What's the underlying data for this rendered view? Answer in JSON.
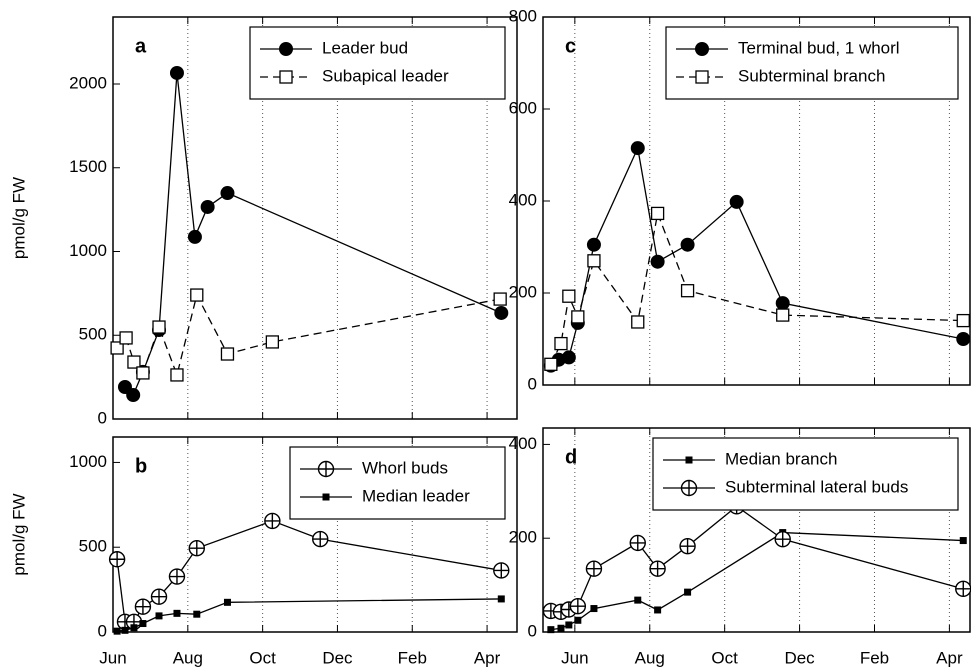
{
  "chart_data": [
    {
      "type": "line",
      "label": "a",
      "ylabel": "pmol/g FW",
      "legend": "upper right",
      "xgrid": true,
      "xlim": [
        6,
        16.8
      ],
      "ylim": [
        0,
        2400
      ],
      "yticks": [
        0,
        500,
        1000,
        1500,
        2000
      ],
      "xticks": [
        {
          "value": 6,
          "label": "Jun"
        },
        {
          "value": 8,
          "label": "Aug"
        },
        {
          "value": 10,
          "label": "Oct"
        },
        {
          "value": 12,
          "label": "Dec"
        },
        {
          "value": 14,
          "label": "Feb"
        },
        {
          "value": 16,
          "label": "Apr"
        }
      ],
      "series": [
        {
          "name": "Leader bud",
          "color": "#000",
          "marker": "filled-circle",
          "dash": false,
          "x": [
            6.32,
            6.54,
            6.8,
            7.23,
            7.71,
            8.19,
            8.53,
            9.06,
            16.38
          ],
          "values": [
            191,
            143,
            281,
            531,
            2066,
            1087,
            1266,
            1349,
            633
          ]
        },
        {
          "name": "Subapical leader",
          "color": "#000",
          "marker": "open-square",
          "dash": true,
          "x": [
            6.11,
            6.35,
            6.56,
            6.8,
            7.23,
            7.71,
            8.24,
            9.06,
            10.26,
            16.35
          ],
          "values": [
            424,
            484,
            340,
            275,
            549,
            263,
            740,
            388,
            460,
            716
          ]
        }
      ]
    },
    {
      "type": "line",
      "label": "b",
      "ylabel": "pmol/g FW",
      "legend": "upper right",
      "xgrid": true,
      "xlim": [
        6,
        16.8
      ],
      "ylim": [
        0,
        1150
      ],
      "yticks": [
        0,
        500,
        1000
      ],
      "xticks": [
        {
          "value": 6,
          "label": "Jun"
        },
        {
          "value": 8,
          "label": "Aug"
        },
        {
          "value": 10,
          "label": "Oct"
        },
        {
          "value": 12,
          "label": "Dec"
        },
        {
          "value": 14,
          "label": "Feb"
        },
        {
          "value": 16,
          "label": "Apr"
        }
      ],
      "series": [
        {
          "name": "Whorl buds",
          "color": "#000",
          "marker": "circle-plus",
          "dash": false,
          "x": [
            6.11,
            6.32,
            6.56,
            6.8,
            7.23,
            7.71,
            8.24,
            10.26,
            11.54,
            16.38
          ],
          "values": [
            429,
            60,
            60,
            149,
            208,
            327,
            494,
            655,
            548,
            363
          ]
        },
        {
          "name": "Median leader",
          "color": "#000",
          "marker": "small-square",
          "dash": false,
          "x": [
            6.11,
            6.32,
            6.56,
            6.8,
            7.23,
            7.71,
            8.24,
            9.06,
            16.38
          ],
          "values": [
            5,
            10,
            25,
            50,
            95,
            110,
            105,
            175,
            195
          ]
        }
      ]
    },
    {
      "type": "line",
      "label": "c",
      "legend": "upper right",
      "xgrid": true,
      "xlim": [
        5.15,
        16.55
      ],
      "ylim": [
        0,
        800
      ],
      "yticks": [
        0,
        200,
        400,
        600,
        800
      ],
      "xticks": [
        {
          "value": 6,
          "label": "Jun"
        },
        {
          "value": 8,
          "label": "Aug"
        },
        {
          "value": 10,
          "label": "Oct"
        },
        {
          "value": 12,
          "label": "Dec"
        },
        {
          "value": 14,
          "label": "Feb"
        },
        {
          "value": 16,
          "label": "Apr"
        }
      ],
      "series": [
        {
          "name": "Terminal bud, 1 whorl",
          "color": "#000",
          "marker": "filled-circle",
          "dash": false,
          "x": [
            5.36,
            5.57,
            5.84,
            6.08,
            6.51,
            7.68,
            8.21,
            9.01,
            10.32,
            11.55,
            16.37
          ],
          "values": [
            42,
            55,
            60,
            135,
            305,
            515,
            268,
            305,
            398,
            178,
            100
          ]
        },
        {
          "name": "Subterminal branch",
          "color": "#000",
          "marker": "open-square",
          "dash": true,
          "x": [
            5.36,
            5.63,
            5.84,
            6.08,
            6.51,
            7.68,
            8.21,
            9.01,
            11.55,
            16.37
          ],
          "values": [
            45,
            90,
            193,
            148,
            270,
            137,
            373,
            205,
            152,
            140
          ]
        }
      ]
    },
    {
      "type": "line",
      "label": "d",
      "legend": "upper right",
      "xgrid": true,
      "xlim": [
        5.15,
        16.55
      ],
      "ylim": [
        0,
        435
      ],
      "yticks": [
        0,
        200,
        400
      ],
      "xticks": [
        {
          "value": 6,
          "label": "Jun"
        },
        {
          "value": 8,
          "label": "Aug"
        },
        {
          "value": 10,
          "label": "Oct"
        },
        {
          "value": 12,
          "label": "Dec"
        },
        {
          "value": 14,
          "label": "Feb"
        },
        {
          "value": 16,
          "label": "Apr"
        }
      ],
      "series": [
        {
          "name": "Median branch",
          "color": "#000",
          "marker": "small-square",
          "dash": false,
          "x": [
            5.36,
            5.63,
            5.84,
            6.08,
            6.51,
            7.68,
            8.21,
            9.01,
            11.55,
            16.37
          ],
          "values": [
            5,
            8,
            15,
            25,
            50,
            68,
            47,
            85,
            212,
            195
          ]
        },
        {
          "name": "Subterminal lateral buds",
          "color": "#000",
          "marker": "circle-plus",
          "dash": false,
          "x": [
            5.36,
            5.63,
            5.84,
            6.08,
            6.51,
            7.68,
            8.21,
            9.01,
            10.32,
            11.55,
            16.37
          ],
          "values": [
            45,
            43,
            48,
            55,
            135,
            190,
            135,
            183,
            268,
            198,
            92
          ]
        }
      ]
    }
  ]
}
